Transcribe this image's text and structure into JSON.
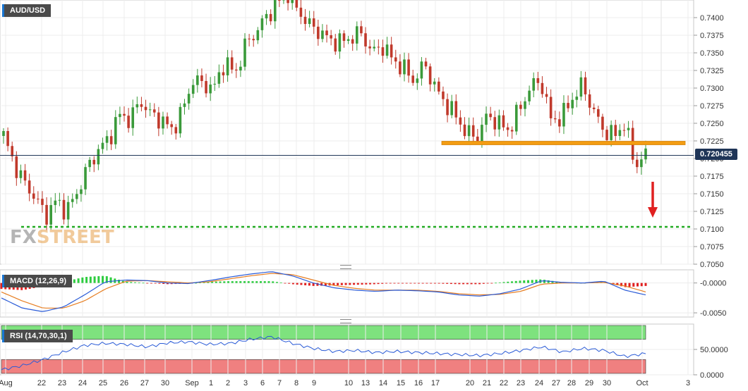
{
  "symbol": "AUD/USD",
  "current_price": "0.720455",
  "macd_label": "MACD (12,26,9)",
  "rsi_label": "RSI (14,70,30,1)",
  "logo": {
    "part1": "FX",
    "part2": "STREET"
  },
  "colors": {
    "bullish": "#3a9a3a",
    "bearish": "#c0392b",
    "support_line": "#22aa22",
    "resistance_band": "#f39c12",
    "price_line": "#1f3557",
    "macd_line": "#2a5bd7",
    "signal_line": "#e67e22",
    "rsi_line": "#2a5bd7",
    "overbought_zone": "#7ee27e",
    "oversold_zone": "#f08080",
    "arrow": "#e02020"
  },
  "chart_data": [
    {
      "type": "candlestick",
      "title": "AUD/USD",
      "ylim": [
        0.705,
        0.7425
      ],
      "y_ticks": [
        0.705,
        0.7075,
        0.71,
        0.7125,
        0.715,
        0.7175,
        0.72,
        0.7225,
        0.725,
        0.7275,
        0.73,
        0.7325,
        0.735,
        0.7375,
        0.74
      ],
      "y_tick_labels": [
        "0.7050",
        "0.7075",
        "0.7100",
        "0.7125",
        "0.7150",
        "0.7175",
        "0.7200",
        "0.7225",
        "0.7250",
        "0.7275",
        "0.7300",
        "0.7325",
        "0.7350",
        "0.7375",
        "0.7400"
      ],
      "x_tick_labels": [
        "Aug",
        "22",
        "23",
        "24",
        "25",
        "26",
        "27",
        "30",
        "Sep",
        "1",
        "2",
        "3",
        "6",
        "7",
        "8",
        "9",
        "10",
        "13",
        "14",
        "15",
        "16",
        "17",
        "20",
        "21",
        "22",
        "23",
        "24",
        "27",
        "28",
        "29",
        "30",
        "Oct",
        "3"
      ],
      "price_path": [
        0.7232,
        0.7192,
        0.7165,
        0.7145,
        0.7118,
        0.714,
        0.7125,
        0.7152,
        0.7188,
        0.7212,
        0.7228,
        0.7262,
        0.7255,
        0.7282,
        0.7262,
        0.7255,
        0.724,
        0.7268,
        0.7312,
        0.7305,
        0.73,
        0.7338,
        0.732,
        0.7362,
        0.738,
        0.7402,
        0.742,
        0.7435,
        0.741,
        0.739,
        0.738,
        0.7368,
        0.7365,
        0.7372,
        0.7378,
        0.735,
        0.736,
        0.734,
        0.7328,
        0.731,
        0.7335,
        0.73,
        0.7278,
        0.726,
        0.7235,
        0.7232,
        0.7262,
        0.725,
        0.724,
        0.727,
        0.73,
        0.7312,
        0.7255,
        0.7258,
        0.7285,
        0.7305,
        0.7268,
        0.724,
        0.7232,
        0.725,
        0.719,
        0.7205
      ],
      "resistance": 0.7222,
      "support": 0.7103,
      "current": 0.720455,
      "grid": true
    },
    {
      "type": "line",
      "title": "MACD (12,26,9)",
      "ylim": [
        -0.0057,
        0.0022
      ],
      "y_ticks": [
        0.0,
        -0.005
      ],
      "y_tick_labels": [
        "-0.0000",
        "-0.0050"
      ],
      "macd_path": [
        -0.0025,
        -0.0042,
        -0.0048,
        -0.004,
        -0.002,
        0.0002,
        0.0005,
        0.0004,
        0.0,
        -0.0001,
        0.0004,
        0.001,
        0.0015,
        0.0019,
        0.0012,
        0.0,
        -0.0008,
        -0.0012,
        -0.0014,
        -0.0012,
        -0.0013,
        -0.0015,
        -0.002,
        -0.0022,
        -0.0018,
        -0.001,
        0.0004,
        0.0001,
        0.0,
        0.0003,
        -0.0012,
        -0.002
      ],
      "signal_path": [
        -0.0015,
        -0.003,
        -0.0042,
        -0.0042,
        -0.003,
        -0.001,
        0.0003,
        0.0004,
        0.0002,
        0.0,
        0.0002,
        0.0007,
        0.0012,
        0.0016,
        0.0014,
        0.0005,
        -0.0004,
        -0.0009,
        -0.0012,
        -0.0012,
        -0.0012,
        -0.0014,
        -0.0018,
        -0.002,
        -0.0019,
        -0.0014,
        -0.0002,
        0.0,
        0.0,
        0.0001,
        -0.0005,
        -0.0015
      ]
    },
    {
      "type": "line",
      "title": "RSI (14,70,30,1)",
      "ylim": [
        0,
        100
      ],
      "y_ticks": [
        50,
        0
      ],
      "y_tick_labels": [
        "50.0000",
        "0.0000"
      ],
      "overbought": 70,
      "oversold": 30,
      "rsi_path": [
        10,
        18,
        30,
        45,
        58,
        62,
        60,
        55,
        63,
        65,
        60,
        62,
        70,
        75,
        62,
        52,
        46,
        48,
        44,
        46,
        44,
        42,
        40,
        38,
        42,
        48,
        55,
        45,
        52,
        48,
        36,
        42
      ]
    }
  ]
}
